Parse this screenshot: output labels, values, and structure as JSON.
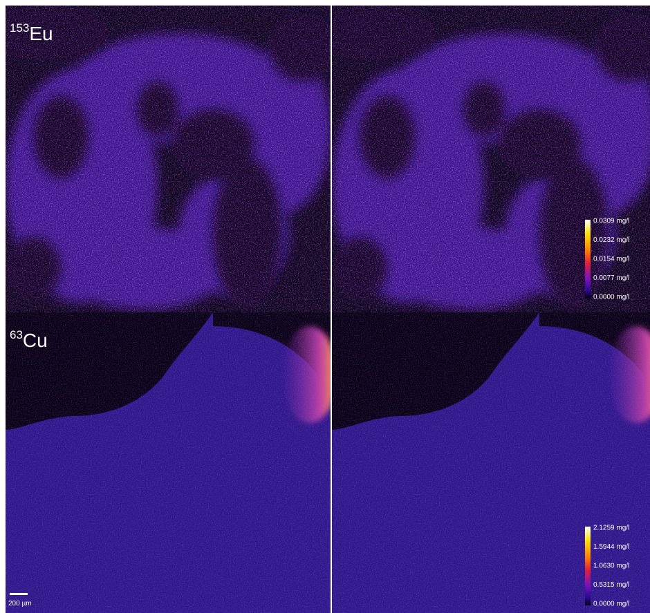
{
  "panels": [
    {
      "mass": "153",
      "element": "Eu",
      "colorbar": [
        "0.0309 mg/l",
        "0.0232 mg/l",
        "0.0154 mg/l",
        "0.0077 mg/l",
        "0.0000 mg/l"
      ]
    },
    {
      "mass": "63",
      "element": "Cu",
      "colorbar": [
        "2.1259 mg/l",
        "1.5944 mg/l",
        "1.0630 mg/l",
        "0.5315 mg/l",
        "0.0000 mg/l"
      ]
    }
  ],
  "scale_bar": "200 µm"
}
